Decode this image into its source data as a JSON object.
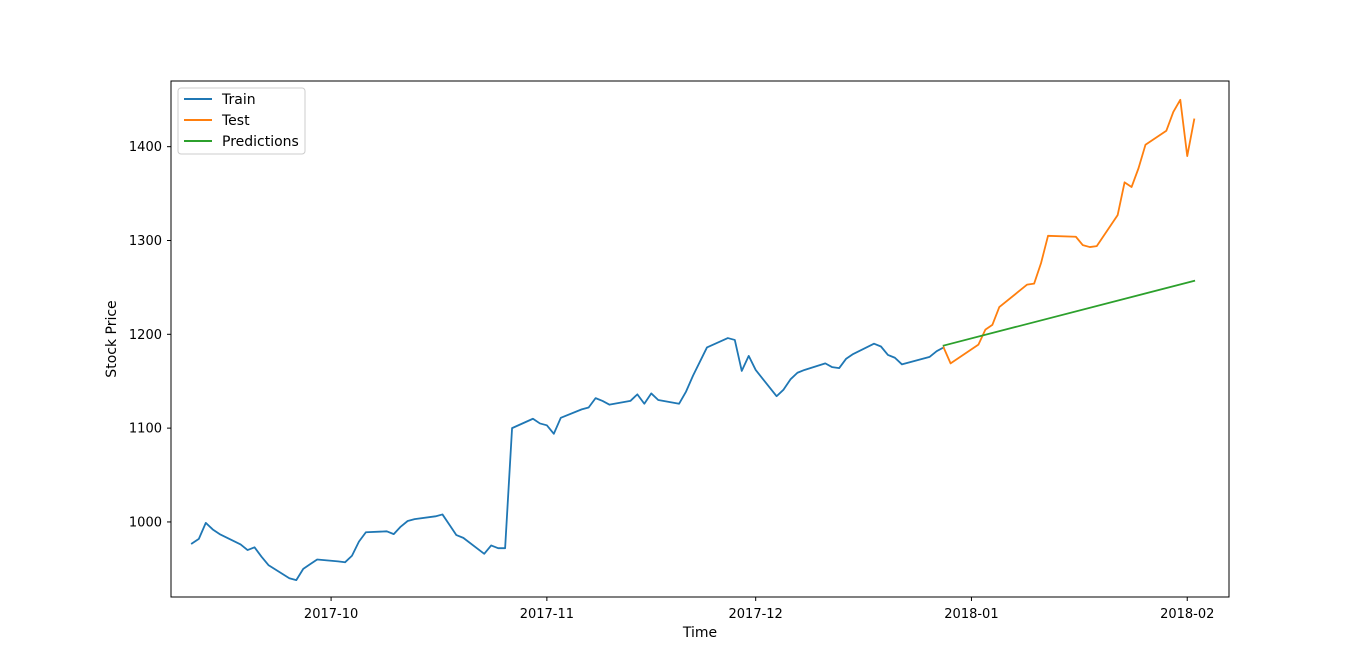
{
  "chart_data": {
    "type": "line",
    "title": "",
    "xlabel": "Time",
    "ylabel": "Stock Price",
    "x_axis": "date",
    "xlim": [
      "2017-09-08",
      "2018-02-07"
    ],
    "ylim": [
      920,
      1470
    ],
    "x_ticks": [
      "2017-10-01",
      "2017-11-01",
      "2017-12-01",
      "2018-01-01",
      "2018-02-01"
    ],
    "x_tick_labels": [
      "2017-10",
      "2017-11",
      "2017-12",
      "2018-01",
      "2018-02"
    ],
    "y_ticks": [
      1000,
      1100,
      1200,
      1300,
      1400
    ],
    "y_tick_labels": [
      "1000",
      "1100",
      "1200",
      "1300",
      "1400"
    ],
    "grid": false,
    "legend_position": "top-left",
    "series": [
      {
        "name": "Train",
        "color": "#1f77b4",
        "points": [
          [
            "2017-09-11",
            977
          ],
          [
            "2017-09-12",
            982
          ],
          [
            "2017-09-13",
            999
          ],
          [
            "2017-09-14",
            992
          ],
          [
            "2017-09-15",
            987
          ],
          [
            "2017-09-18",
            976
          ],
          [
            "2017-09-19",
            970
          ],
          [
            "2017-09-20",
            973
          ],
          [
            "2017-09-21",
            963
          ],
          [
            "2017-09-22",
            954
          ],
          [
            "2017-09-25",
            940
          ],
          [
            "2017-09-26",
            938
          ],
          [
            "2017-09-27",
            950
          ],
          [
            "2017-09-28",
            955
          ],
          [
            "2017-09-29",
            960
          ],
          [
            "2017-10-02",
            958
          ],
          [
            "2017-10-03",
            957
          ],
          [
            "2017-10-04",
            964
          ],
          [
            "2017-10-05",
            979
          ],
          [
            "2017-10-06",
            989
          ],
          [
            "2017-10-09",
            990
          ],
          [
            "2017-10-10",
            987
          ],
          [
            "2017-10-11",
            995
          ],
          [
            "2017-10-12",
            1001
          ],
          [
            "2017-10-13",
            1003
          ],
          [
            "2017-10-16",
            1006
          ],
          [
            "2017-10-17",
            1008
          ],
          [
            "2017-10-18",
            997
          ],
          [
            "2017-10-19",
            986
          ],
          [
            "2017-10-20",
            983
          ],
          [
            "2017-10-23",
            966
          ],
          [
            "2017-10-24",
            975
          ],
          [
            "2017-10-25",
            972
          ],
          [
            "2017-10-26",
            972
          ],
          [
            "2017-10-27",
            1100
          ],
          [
            "2017-10-30",
            1110
          ],
          [
            "2017-10-31",
            1105
          ],
          [
            "2017-11-01",
            1103
          ],
          [
            "2017-11-02",
            1094
          ],
          [
            "2017-11-03",
            1111
          ],
          [
            "2017-11-06",
            1120
          ],
          [
            "2017-11-07",
            1122
          ],
          [
            "2017-11-08",
            1132
          ],
          [
            "2017-11-09",
            1129
          ],
          [
            "2017-11-10",
            1125
          ],
          [
            "2017-11-13",
            1129
          ],
          [
            "2017-11-14",
            1136
          ],
          [
            "2017-11-15",
            1126
          ],
          [
            "2017-11-16",
            1137
          ],
          [
            "2017-11-17",
            1130
          ],
          [
            "2017-11-20",
            1126
          ],
          [
            "2017-11-21",
            1139
          ],
          [
            "2017-11-22",
            1156
          ],
          [
            "2017-11-24",
            1186
          ],
          [
            "2017-11-27",
            1196
          ],
          [
            "2017-11-28",
            1194
          ],
          [
            "2017-11-29",
            1161
          ],
          [
            "2017-11-30",
            1177
          ],
          [
            "2017-12-01",
            1162
          ],
          [
            "2017-12-04",
            1134
          ],
          [
            "2017-12-05",
            1141
          ],
          [
            "2017-12-06",
            1152
          ],
          [
            "2017-12-07",
            1159
          ],
          [
            "2017-12-08",
            1162
          ],
          [
            "2017-12-11",
            1169
          ],
          [
            "2017-12-12",
            1165
          ],
          [
            "2017-12-13",
            1164
          ],
          [
            "2017-12-14",
            1174
          ],
          [
            "2017-12-15",
            1179
          ],
          [
            "2017-12-18",
            1190
          ],
          [
            "2017-12-19",
            1187
          ],
          [
            "2017-12-20",
            1178
          ],
          [
            "2017-12-21",
            1175
          ],
          [
            "2017-12-22",
            1168
          ],
          [
            "2017-12-26",
            1176
          ],
          [
            "2017-12-27",
            1182
          ],
          [
            "2017-12-28",
            1186
          ]
        ]
      },
      {
        "name": "Test",
        "color": "#ff7f0e",
        "points": [
          [
            "2017-12-28",
            1186
          ],
          [
            "2017-12-29",
            1169
          ],
          [
            "2018-01-02",
            1189
          ],
          [
            "2018-01-03",
            1205
          ],
          [
            "2018-01-04",
            1210
          ],
          [
            "2018-01-05",
            1229
          ],
          [
            "2018-01-08",
            1247
          ],
          [
            "2018-01-09",
            1253
          ],
          [
            "2018-01-10",
            1254
          ],
          [
            "2018-01-11",
            1276
          ],
          [
            "2018-01-12",
            1305
          ],
          [
            "2018-01-16",
            1304
          ],
          [
            "2018-01-17",
            1295
          ],
          [
            "2018-01-18",
            1293
          ],
          [
            "2018-01-19",
            1294
          ],
          [
            "2018-01-22",
            1327
          ],
          [
            "2018-01-23",
            1362
          ],
          [
            "2018-01-24",
            1357
          ],
          [
            "2018-01-25",
            1377
          ],
          [
            "2018-01-26",
            1402
          ],
          [
            "2018-01-29",
            1417
          ],
          [
            "2018-01-30",
            1437
          ],
          [
            "2018-01-31",
            1450
          ],
          [
            "2018-02-01",
            1390
          ],
          [
            "2018-02-02",
            1429
          ]
        ]
      },
      {
        "name": "Predictions",
        "color": "#2ca02c",
        "points": [
          [
            "2017-12-28",
            1188
          ],
          [
            "2018-02-02",
            1257
          ]
        ]
      }
    ]
  }
}
